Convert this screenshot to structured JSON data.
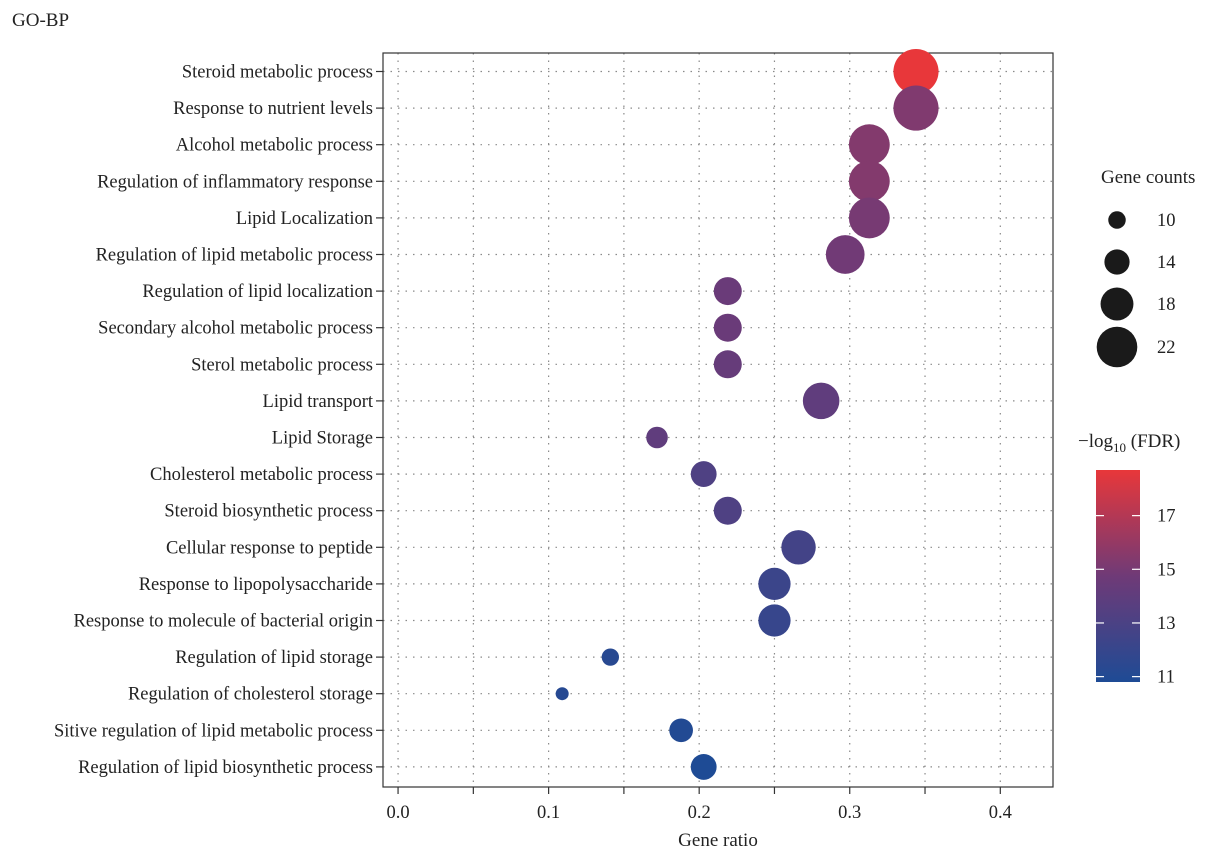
{
  "chart_data": {
    "type": "scatter",
    "title": "GO-BP",
    "xlabel": "Gene ratio",
    "ylabel": "",
    "xlim": [
      -0.01,
      0.435
    ],
    "xticks": [
      0.0,
      0.1,
      0.2,
      0.3,
      0.4
    ],
    "xtick_labels": [
      "0.0",
      "0.1",
      "0.2",
      "0.3",
      "0.4"
    ],
    "grid": true,
    "categories": [
      "Steroid metabolic process",
      "Response to nutrient levels",
      "Alcohol metabolic process",
      "Regulation of inflammatory response",
      "Lipid Localization",
      "Regulation of lipid metabolic process",
      "Regulation of lipid localization",
      "Secondary alcohol metabolic process",
      "Sterol metabolic process",
      "Lipid transport",
      "Lipid Storage",
      "Cholesterol metabolic process",
      "Steroid biosynthetic process",
      "Cellular response to peptide",
      "Response to lipopolysaccharide",
      "Response to molecule of bacterial origin",
      "Regulation of lipid storage",
      "Regulation of cholesterol storage",
      "Sitive regulation of lipid metabolic process",
      "Regulation of lipid biosynthetic process"
    ],
    "points": [
      {
        "term": "Steroid metabolic process",
        "gene_ratio": 0.344,
        "gene_count": 22,
        "neg_log10_fdr": 18.7
      },
      {
        "term": "Response to nutrient levels",
        "gene_ratio": 0.344,
        "gene_count": 22,
        "neg_log10_fdr": 15.3
      },
      {
        "term": "Alcohol metabolic process",
        "gene_ratio": 0.313,
        "gene_count": 20,
        "neg_log10_fdr": 15.4
      },
      {
        "term": "Regulation of inflammatory response",
        "gene_ratio": 0.313,
        "gene_count": 20,
        "neg_log10_fdr": 15.4
      },
      {
        "term": "Lipid Localization",
        "gene_ratio": 0.313,
        "gene_count": 20,
        "neg_log10_fdr": 15.0
      },
      {
        "term": "Regulation of lipid metabolic process",
        "gene_ratio": 0.297,
        "gene_count": 19,
        "neg_log10_fdr": 14.8
      },
      {
        "term": "Regulation of lipid localization",
        "gene_ratio": 0.219,
        "gene_count": 14,
        "neg_log10_fdr": 14.5
      },
      {
        "term": "Secondary alcohol metabolic process",
        "gene_ratio": 0.219,
        "gene_count": 14,
        "neg_log10_fdr": 14.5
      },
      {
        "term": "Sterol metabolic process",
        "gene_ratio": 0.219,
        "gene_count": 14,
        "neg_log10_fdr": 14.3
      },
      {
        "term": "Lipid transport",
        "gene_ratio": 0.281,
        "gene_count": 18,
        "neg_log10_fdr": 14.0
      },
      {
        "term": "Lipid Storage",
        "gene_ratio": 0.172,
        "gene_count": 11,
        "neg_log10_fdr": 14.0
      },
      {
        "term": "Cholesterol metabolic process",
        "gene_ratio": 0.203,
        "gene_count": 13,
        "neg_log10_fdr": 13.2
      },
      {
        "term": "Steroid biosynthetic process",
        "gene_ratio": 0.219,
        "gene_count": 14,
        "neg_log10_fdr": 13.2
      },
      {
        "term": "Cellular response to peptide",
        "gene_ratio": 0.266,
        "gene_count": 17,
        "neg_log10_fdr": 12.6
      },
      {
        "term": "Response to lipopolysaccharide",
        "gene_ratio": 0.25,
        "gene_count": 16,
        "neg_log10_fdr": 12.2
      },
      {
        "term": "Response to molecule of bacterial origin",
        "gene_ratio": 0.25,
        "gene_count": 16,
        "neg_log10_fdr": 12.0
      },
      {
        "term": "Regulation of lipid storage",
        "gene_ratio": 0.141,
        "gene_count": 9,
        "neg_log10_fdr": 11.3
      },
      {
        "term": "Regulation of cholesterol storage",
        "gene_ratio": 0.109,
        "gene_count": 7,
        "neg_log10_fdr": 11.2
      },
      {
        "term": "Sitive regulation of lipid metabolic process",
        "gene_ratio": 0.188,
        "gene_count": 12,
        "neg_log10_fdr": 11.0
      },
      {
        "term": "Regulation of lipid biosynthetic process",
        "gene_ratio": 0.203,
        "gene_count": 13,
        "neg_log10_fdr": 10.8
      }
    ],
    "size_legend": {
      "title": "Gene counts",
      "values": [
        10,
        14,
        18,
        22
      ],
      "labels": [
        "10",
        "14",
        "18",
        "22"
      ]
    },
    "color_legend": {
      "title_main": "−log",
      "title_sub": "10",
      "title_rest": " (FDR)",
      "range": [
        10.8,
        18.7
      ],
      "ticks": [
        11,
        13,
        15,
        17
      ],
      "tick_labels": [
        "11",
        "13",
        "15",
        "17"
      ],
      "color_low": "#1e4b95",
      "color_mid": "#6f3a77",
      "color_high": "#e8373a"
    }
  }
}
